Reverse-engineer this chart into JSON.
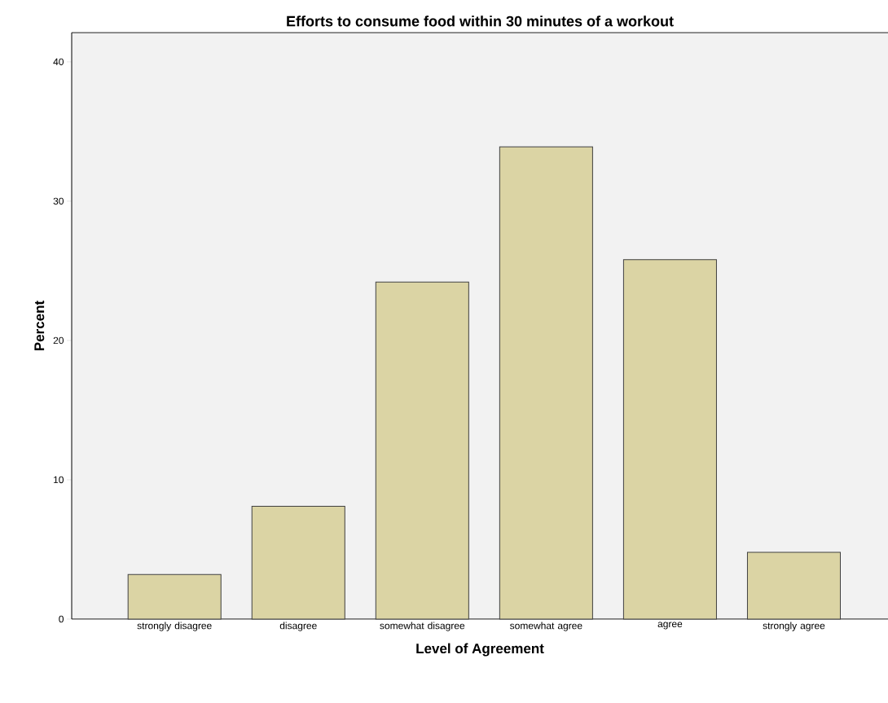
{
  "chart_data": {
    "type": "bar",
    "title": "Efforts to consume food within 30 minutes of a workout",
    "xlabel": "Level of Agreement",
    "ylabel": "Percent",
    "categories": [
      "strongly disagree",
      "disagree",
      "somewhat disagree",
      "somewhat agree",
      "agree",
      "strongly agree"
    ],
    "values": [
      3.2,
      8.1,
      24.2,
      33.9,
      25.8,
      4.8
    ],
    "color": "#dbd4a4",
    "ylim": [
      0,
      42.1
    ],
    "yticks": [
      0,
      10,
      20,
      30,
      40
    ],
    "grid": false
  }
}
